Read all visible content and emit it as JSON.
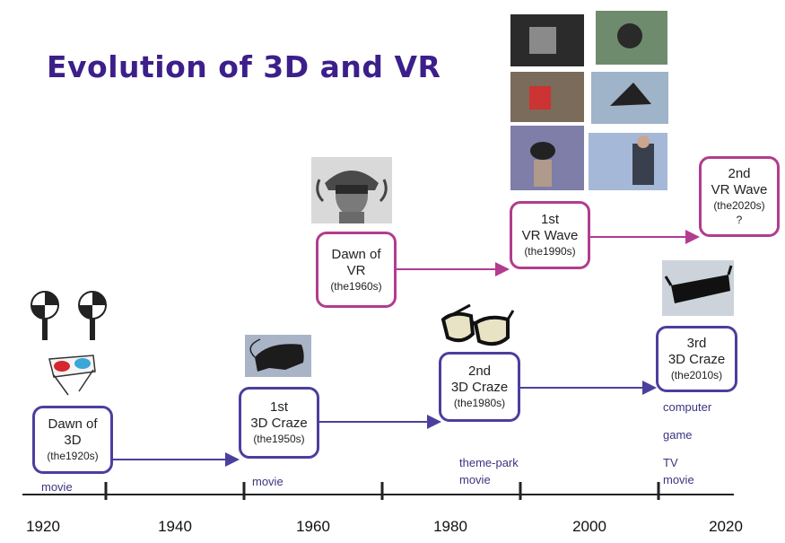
{
  "title": "Evolution of 3D and VR",
  "boxes": {
    "dawn3d": {
      "line1": "Dawn of",
      "line2": "3D",
      "sub": "(the1920s)"
    },
    "craze1": {
      "line1": "1st",
      "line2": "3D Craze",
      "sub": "(the1950s)"
    },
    "dawnvr": {
      "line1": "Dawn of",
      "line2": "VR",
      "sub": "(the1960s)"
    },
    "craze2": {
      "line1": "2nd",
      "line2": "3D Craze",
      "sub": "(the1980s)"
    },
    "vr1": {
      "line1": "1st",
      "line2": "VR Wave",
      "sub": "(the1990s)"
    },
    "craze3": {
      "line1": "3rd",
      "line2": "3D Craze",
      "sub": "(the2010s)"
    },
    "vr2": {
      "line1": "2nd",
      "line2": "VR Wave",
      "sub": "(the2020s)",
      "extra": "?"
    }
  },
  "notes": {
    "movie1": "movie",
    "movie2": "movie",
    "themepark": "theme-park",
    "movie3": "movie",
    "computer": "computer",
    "game": "game",
    "tv": "TV",
    "movie4": "movie"
  },
  "axis": {
    "ticks": [
      "1920",
      "1940",
      "1960",
      "1980",
      "2000",
      "2020"
    ]
  },
  "colors": {
    "title": "#3c1f8a",
    "blue_box": "#4b3f9e",
    "pink_box": "#b23c8e",
    "axis": "#222222"
  }
}
